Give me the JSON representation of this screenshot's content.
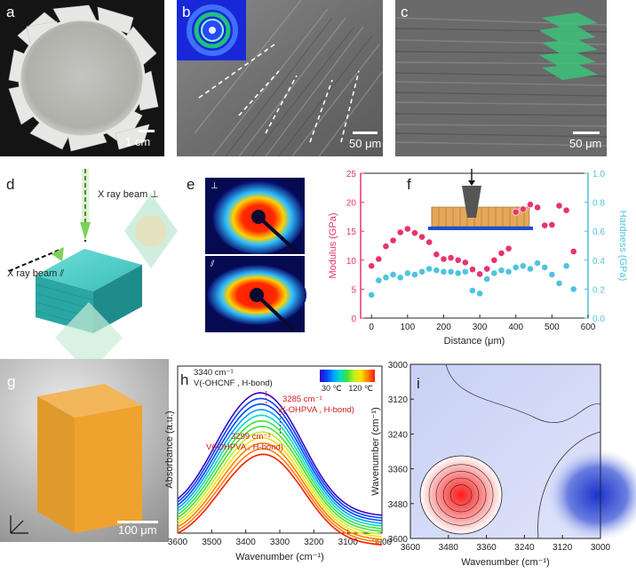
{
  "panels": {
    "a": {
      "label": "a",
      "scale": "1 cm"
    },
    "b": {
      "label": "b",
      "scale": "50 μm"
    },
    "c": {
      "label": "c",
      "scale": "50 μm"
    },
    "d": {
      "label": "d",
      "beam_top": "X ray beam ⊥",
      "beam_side": "X ray beam ⫽"
    },
    "e": {
      "label": "e",
      "top_symbol": "⊥",
      "bottom_symbol": "⫽"
    },
    "f": {
      "label": "f"
    },
    "g": {
      "label": "g",
      "scale": "100 μm"
    },
    "h": {
      "label": "h"
    },
    "i": {
      "label": "i"
    }
  },
  "chart_data": [
    {
      "id": "f",
      "type": "scatter",
      "xlabel": "Distance (μm)",
      "ylabel_left": "Modulus (GPa)",
      "ylabel_right": "Hardness (GPa)",
      "xlim": [
        -30,
        600
      ],
      "ylim_left": [
        0,
        25
      ],
      "ylim_right": [
        0,
        1.0
      ],
      "xticks": [
        0,
        100,
        200,
        300,
        400,
        500,
        600
      ],
      "yticks_left": [
        0,
        5,
        10,
        15,
        20,
        25
      ],
      "yticks_right": [
        0.0,
        0.2,
        0.4,
        0.6,
        0.8,
        1.0
      ],
      "colors": {
        "modulus": "#e8336d",
        "hardness": "#4fc3df",
        "left_axis": "#e8336d",
        "right_axis": "#4fc3df"
      },
      "series": [
        {
          "key": "modulus",
          "axis": "left",
          "x": [
            0,
            20,
            40,
            60,
            80,
            100,
            120,
            140,
            160,
            180,
            200,
            220,
            240,
            260,
            280,
            300,
            320,
            340,
            360,
            380,
            400,
            420,
            440,
            460,
            480,
            500,
            520,
            540,
            560
          ],
          "y": [
            9.0,
            10.2,
            12.4,
            13.4,
            14.8,
            15.4,
            14.7,
            14.0,
            13.1,
            11.0,
            10.2,
            10.4,
            10.0,
            9.6,
            8.4,
            7.6,
            8.5,
            10.0,
            11.2,
            12.0,
            18.3,
            18.8,
            19.6,
            19.1,
            16.0,
            16.1,
            19.4,
            18.6,
            11.5
          ]
        },
        {
          "key": "hardness",
          "axis": "right",
          "x": [
            0,
            20,
            40,
            60,
            80,
            100,
            120,
            140,
            160,
            180,
            200,
            220,
            240,
            260,
            280,
            300,
            320,
            340,
            360,
            380,
            400,
            420,
            440,
            460,
            480,
            500,
            520,
            540,
            560
          ],
          "y": [
            0.16,
            0.26,
            0.28,
            0.3,
            0.28,
            0.31,
            0.3,
            0.32,
            0.34,
            0.33,
            0.32,
            0.32,
            0.31,
            0.32,
            0.19,
            0.17,
            0.27,
            0.31,
            0.33,
            0.32,
            0.35,
            0.36,
            0.34,
            0.38,
            0.35,
            0.3,
            0.24,
            0.36,
            0.2
          ]
        }
      ]
    },
    {
      "id": "h",
      "type": "line",
      "xlabel": "Wavenumber (cm⁻¹)",
      "ylabel": "Absorbance (a.u.)",
      "xlim": [
        3600,
        3000
      ],
      "xticks": [
        3600,
        3500,
        3400,
        3300,
        3200,
        3100,
        3000
      ],
      "colorbar": {
        "min_label": "30 ℃",
        "max_label": "120 ℃",
        "colors": [
          "#3a00c8",
          "#0044ff",
          "#00a0ff",
          "#00e0c0",
          "#40e040",
          "#c0f020",
          "#ffe000",
          "#ff8000",
          "#ff1a00"
        ]
      },
      "annotations": [
        {
          "text": "3340 cm⁻¹"
        },
        {
          "text": "V(-OHCNF , H-bond)"
        },
        {
          "text": "3285 cm⁻¹"
        },
        {
          "text": "V(-OHPVA , H-bond)"
        },
        {
          "text": "3299 cm⁻¹"
        },
        {
          "text": "V(-OHPVA , H-bond)"
        }
      ],
      "curve_count": 12
    },
    {
      "id": "i",
      "type": "heatmap",
      "xlabel": "Wavenumber (cm⁻¹)",
      "ylabel": "Wavenumber (cm⁻¹)",
      "xlim": [
        3600,
        3000
      ],
      "ylim": [
        3000,
        3600
      ],
      "xticks": [
        3600,
        3480,
        3360,
        3240,
        3120,
        3000
      ],
      "yticks": [
        3000,
        3120,
        3240,
        3360,
        3480,
        3600
      ],
      "peaks": [
        {
          "x": 3440,
          "y": 3450,
          "sign": "positive",
          "color": "#ff1a1a"
        },
        {
          "x": 3010,
          "y": 3450,
          "sign": "negative",
          "color": "#1a33cc"
        }
      ]
    }
  ]
}
